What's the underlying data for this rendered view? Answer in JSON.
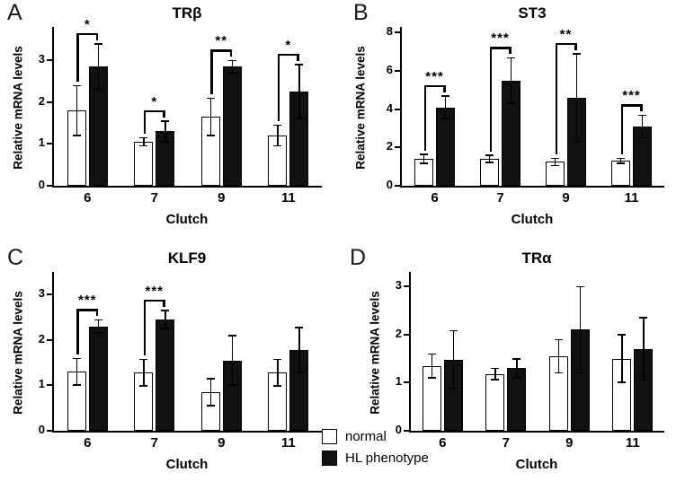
{
  "colors": {
    "axis": "#000000",
    "bar_normal": "#ffffff",
    "bar_hl": "#111111"
  },
  "legend": {
    "position": "bottom-center",
    "items": [
      {
        "label": "normal",
        "fill": "#ffffff"
      },
      {
        "label": "HL phenotype",
        "fill": "#111111"
      }
    ]
  },
  "chart_data": [
    {
      "type": "bar",
      "panel": "A",
      "title": "TRβ",
      "xlabel": "Clutch",
      "ylabel": "Relative mRNA levels",
      "categories": [
        "6",
        "7",
        "9",
        "11"
      ],
      "series": [
        {
          "name": "normal",
          "values": [
            1.8,
            1.05,
            1.65,
            1.2
          ],
          "errors": [
            0.6,
            0.1,
            0.45,
            0.25
          ]
        },
        {
          "name": "HL phenotype",
          "values": [
            2.85,
            1.3,
            2.85,
            2.25
          ],
          "errors": [
            0.55,
            0.25,
            0.15,
            0.65
          ]
        }
      ],
      "significance": [
        "*",
        "*",
        "**",
        "*"
      ],
      "yticks": [
        0,
        1,
        2,
        3
      ],
      "ylim": [
        0,
        3
      ],
      "axis_top": 3.8,
      "grid": false
    },
    {
      "type": "bar",
      "panel": "B",
      "title": "ST3",
      "xlabel": "Clutch",
      "ylabel": "Relative mRNA levels",
      "categories": [
        "6",
        "7",
        "9",
        "11"
      ],
      "series": [
        {
          "name": "normal",
          "values": [
            1.4,
            1.4,
            1.25,
            1.3
          ],
          "errors": [
            0.25,
            0.2,
            0.2,
            0.15
          ]
        },
        {
          "name": "HL phenotype",
          "values": [
            4.1,
            5.5,
            4.6,
            3.1
          ],
          "errors": [
            0.6,
            1.2,
            2.3,
            0.6
          ]
        }
      ],
      "significance": [
        "***",
        "***",
        "**",
        "***"
      ],
      "yticks": [
        0,
        2,
        4,
        6,
        8
      ],
      "ylim": [
        0,
        8
      ],
      "axis_top": 8.3,
      "grid": false
    },
    {
      "type": "bar",
      "panel": "C",
      "title": "KLF9",
      "xlabel": "Clutch",
      "ylabel": "Relative mRNA levels",
      "categories": [
        "6",
        "7",
        "9",
        "11"
      ],
      "series": [
        {
          "name": "normal",
          "values": [
            1.3,
            1.28,
            0.85,
            1.28
          ],
          "errors": [
            0.3,
            0.3,
            0.3,
            0.3
          ]
        },
        {
          "name": "HL phenotype",
          "values": [
            2.3,
            2.45,
            1.55,
            1.78
          ],
          "errors": [
            0.15,
            0.2,
            0.55,
            0.5
          ]
        }
      ],
      "significance": [
        "***",
        "***",
        null,
        null
      ],
      "yticks": [
        0,
        1,
        2,
        3
      ],
      "ylim": [
        0,
        3
      ],
      "axis_top": 3.5,
      "grid": false
    },
    {
      "type": "bar",
      "panel": "D",
      "title": "TRα",
      "xlabel": "Clutch",
      "ylabel": "Relative mRNA levels",
      "categories": [
        "6",
        "7",
        "9",
        "11"
      ],
      "series": [
        {
          "name": "normal",
          "values": [
            1.35,
            1.18,
            1.55,
            1.5
          ],
          "errors": [
            0.25,
            0.12,
            0.35,
            0.5
          ]
        },
        {
          "name": "HL phenotype",
          "values": [
            1.48,
            1.3,
            2.1,
            1.7
          ],
          "errors": [
            0.6,
            0.2,
            0.9,
            0.65
          ]
        }
      ],
      "significance": [
        null,
        null,
        null,
        null
      ],
      "yticks": [
        0,
        1,
        2,
        3
      ],
      "ylim": [
        0,
        3
      ],
      "axis_top": 3.3,
      "grid": false
    }
  ]
}
